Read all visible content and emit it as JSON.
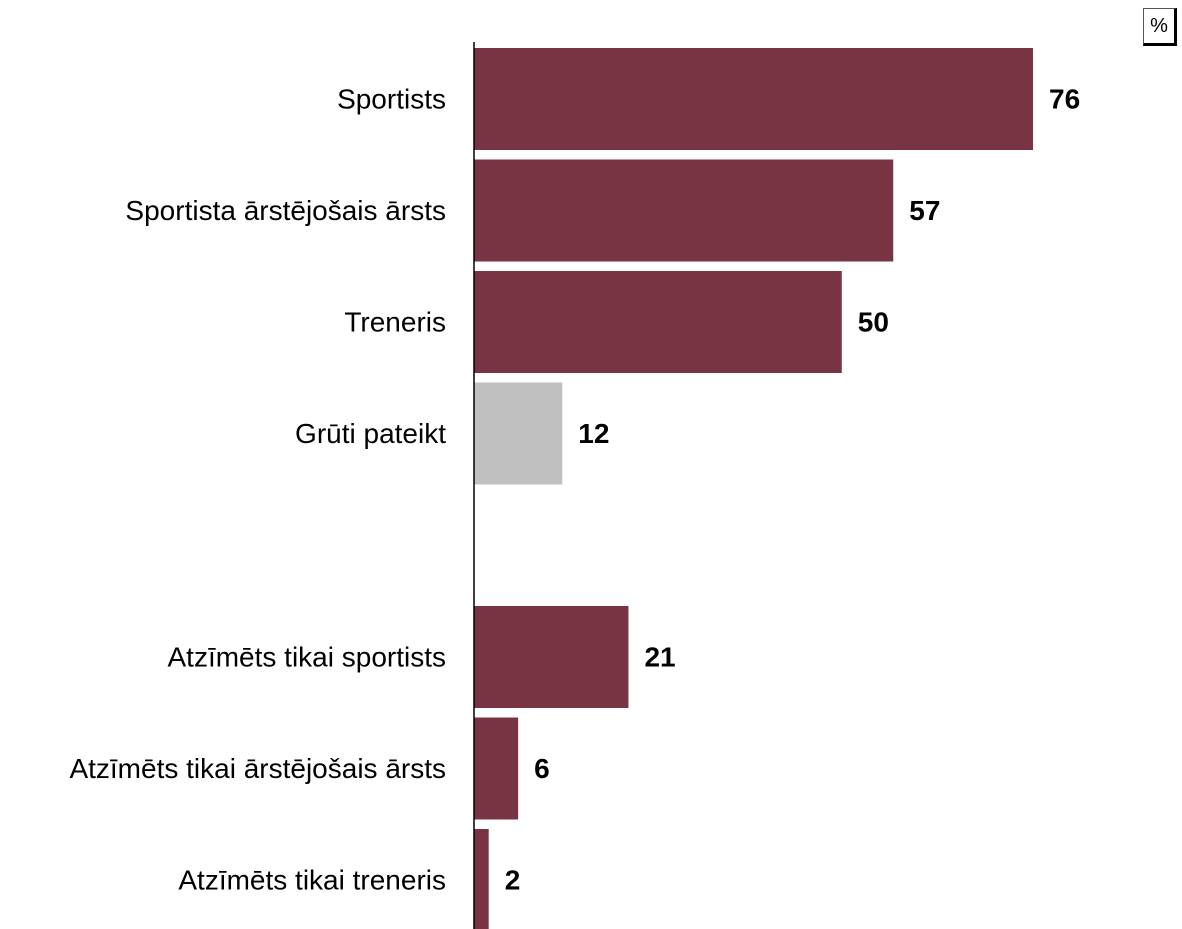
{
  "unit": "%",
  "colors": {
    "primary": "#783443",
    "neutral": "#c0c0c0",
    "axis": "#000000"
  },
  "chart_data": {
    "type": "bar",
    "orientation": "horizontal",
    "grid": false,
    "legend": "none",
    "xlim": [
      0,
      76
    ],
    "groups": [
      {
        "items": [
          {
            "label": "Sportists",
            "value": 76,
            "color": "primary"
          },
          {
            "label": "Sportista ārstējošais ārsts",
            "value": 57,
            "color": "primary"
          },
          {
            "label": "Treneris",
            "value": 50,
            "color": "primary"
          },
          {
            "label": "Grūti pateikt",
            "value": 12,
            "color": "neutral"
          }
        ]
      },
      {
        "items": [
          {
            "label": "Atzīmēts tikai sportists",
            "value": 21,
            "color": "primary"
          },
          {
            "label": "Atzīmēts tikai ārstējošais ārsts",
            "value": 6,
            "color": "primary"
          },
          {
            "label": "Atzīmēts tikai treneris",
            "value": 2,
            "color": "primary"
          }
        ]
      }
    ]
  }
}
